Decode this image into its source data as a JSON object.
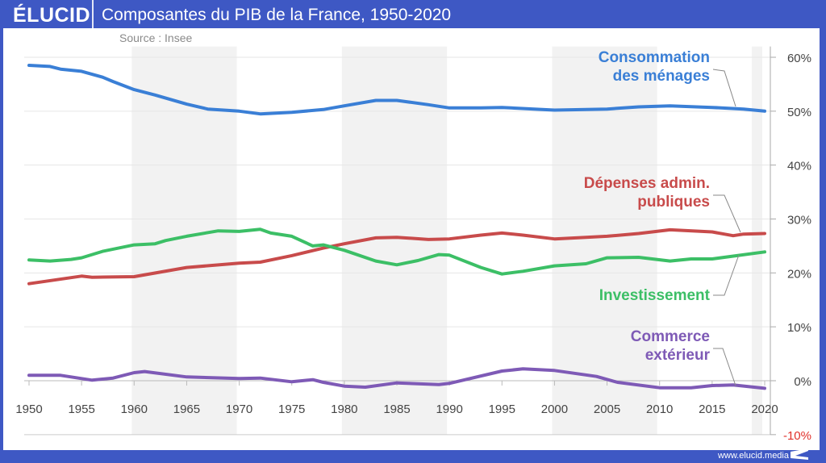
{
  "header": {
    "logo": "ÉLUCID",
    "title": "Composantes du PIB de la France, 1950-2020",
    "source": "Source : Insee"
  },
  "footer": {
    "url": "www.elucid.media"
  },
  "colors": {
    "header_bg": "#3e58c4",
    "band": "#f2f2f2",
    "negative_tick": "#e0302a"
  },
  "chart_data": {
    "type": "line",
    "title": "Composantes du PIB de la France, 1950-2020",
    "xlim": [
      1950,
      2020
    ],
    "ylim": [
      -10,
      60
    ],
    "x_ticks": [
      "1950",
      "1955",
      "1960",
      "1965",
      "1970",
      "1975",
      "1980",
      "1985",
      "1990",
      "1995",
      "2000",
      "2005",
      "2010",
      "2015",
      "2020"
    ],
    "y_ticks": [
      {
        "v": 60,
        "label": "60%"
      },
      {
        "v": 50,
        "label": "50%"
      },
      {
        "v": 40,
        "label": "40%"
      },
      {
        "v": 30,
        "label": "30%"
      },
      {
        "v": 20,
        "label": "20%"
      },
      {
        "v": 10,
        "label": "10%"
      },
      {
        "v": 0,
        "label": "0%"
      },
      {
        "v": -10,
        "label": "-10%"
      }
    ],
    "y_axis_position": "right",
    "shaded_periods": [
      [
        1960,
        1970
      ],
      [
        1980,
        1990
      ],
      [
        2000,
        2010
      ],
      [
        2019,
        2020
      ]
    ],
    "series": [
      {
        "name": "Consommation des ménages",
        "label_lines": [
          "Consommation",
          "des ménages"
        ],
        "color": "#3a7fd6",
        "points": [
          [
            1950,
            58.5
          ],
          [
            1952,
            58.3
          ],
          [
            1953,
            57.8
          ],
          [
            1955,
            57.4
          ],
          [
            1957,
            56.3
          ],
          [
            1958,
            55.5
          ],
          [
            1960,
            54.0
          ],
          [
            1962,
            53.0
          ],
          [
            1965,
            51.3
          ],
          [
            1967,
            50.4
          ],
          [
            1970,
            50.0
          ],
          [
            1972,
            49.5
          ],
          [
            1975,
            49.8
          ],
          [
            1978,
            50.3
          ],
          [
            1980,
            51.0
          ],
          [
            1983,
            52.0
          ],
          [
            1985,
            52.0
          ],
          [
            1988,
            51.2
          ],
          [
            1990,
            50.6
          ],
          [
            1993,
            50.6
          ],
          [
            1995,
            50.7
          ],
          [
            2000,
            50.2
          ],
          [
            2005,
            50.4
          ],
          [
            2008,
            50.8
          ],
          [
            2011,
            51.0
          ],
          [
            2015,
            50.7
          ],
          [
            2018,
            50.4
          ],
          [
            2020,
            50.0
          ]
        ]
      },
      {
        "name": "Dépenses admin. publiques",
        "label_lines": [
          "Dépenses admin.",
          "publiques"
        ],
        "color": "#c84b4b",
        "points": [
          [
            1950,
            18.0
          ],
          [
            1955,
            19.4
          ],
          [
            1956,
            19.2
          ],
          [
            1960,
            19.3
          ],
          [
            1965,
            21.0
          ],
          [
            1970,
            21.8
          ],
          [
            1972,
            22.0
          ],
          [
            1975,
            23.2
          ],
          [
            1978,
            24.6
          ],
          [
            1980,
            25.4
          ],
          [
            1983,
            26.5
          ],
          [
            1985,
            26.6
          ],
          [
            1988,
            26.2
          ],
          [
            1990,
            26.3
          ],
          [
            1993,
            27.0
          ],
          [
            1995,
            27.4
          ],
          [
            1997,
            27.0
          ],
          [
            2000,
            26.3
          ],
          [
            2003,
            26.6
          ],
          [
            2005,
            26.8
          ],
          [
            2008,
            27.3
          ],
          [
            2011,
            28.0
          ],
          [
            2015,
            27.6
          ],
          [
            2017,
            26.9
          ],
          [
            2018,
            27.2
          ],
          [
            2020,
            27.3
          ]
        ]
      },
      {
        "name": "Investissement",
        "label_lines": [
          "Investissement"
        ],
        "color": "#3cbf66",
        "points": [
          [
            1950,
            22.4
          ],
          [
            1952,
            22.2
          ],
          [
            1954,
            22.5
          ],
          [
            1955,
            22.8
          ],
          [
            1957,
            24.0
          ],
          [
            1960,
            25.2
          ],
          [
            1962,
            25.4
          ],
          [
            1963,
            26.0
          ],
          [
            1965,
            26.8
          ],
          [
            1968,
            27.8
          ],
          [
            1970,
            27.7
          ],
          [
            1972,
            28.1
          ],
          [
            1973,
            27.4
          ],
          [
            1975,
            26.8
          ],
          [
            1977,
            25.0
          ],
          [
            1978,
            25.2
          ],
          [
            1980,
            24.2
          ],
          [
            1983,
            22.2
          ],
          [
            1985,
            21.5
          ],
          [
            1987,
            22.3
          ],
          [
            1989,
            23.4
          ],
          [
            1990,
            23.3
          ],
          [
            1993,
            21.0
          ],
          [
            1995,
            19.8
          ],
          [
            1997,
            20.3
          ],
          [
            2000,
            21.3
          ],
          [
            2003,
            21.7
          ],
          [
            2005,
            22.8
          ],
          [
            2008,
            22.9
          ],
          [
            2011,
            22.2
          ],
          [
            2013,
            22.6
          ],
          [
            2015,
            22.6
          ],
          [
            2020,
            23.9
          ]
        ]
      },
      {
        "name": "Commerce extérieur",
        "label_lines": [
          "Commerce",
          "extérieur"
        ],
        "color": "#7e5ab6",
        "points": [
          [
            1950,
            1.0
          ],
          [
            1953,
            1.0
          ],
          [
            1956,
            0.1
          ],
          [
            1958,
            0.5
          ],
          [
            1960,
            1.5
          ],
          [
            1961,
            1.7
          ],
          [
            1965,
            0.7
          ],
          [
            1970,
            0.4
          ],
          [
            1972,
            0.5
          ],
          [
            1975,
            -0.2
          ],
          [
            1977,
            0.2
          ],
          [
            1978,
            -0.3
          ],
          [
            1980,
            -1.0
          ],
          [
            1982,
            -1.2
          ],
          [
            1985,
            -0.4
          ],
          [
            1989,
            -0.7
          ],
          [
            1990,
            -0.5
          ],
          [
            1995,
            1.8
          ],
          [
            1997,
            2.2
          ],
          [
            2000,
            1.9
          ],
          [
            2004,
            0.8
          ],
          [
            2006,
            -0.3
          ],
          [
            2010,
            -1.3
          ],
          [
            2013,
            -1.3
          ],
          [
            2015,
            -0.9
          ],
          [
            2017,
            -0.8
          ],
          [
            2020,
            -1.4
          ]
        ]
      }
    ]
  }
}
